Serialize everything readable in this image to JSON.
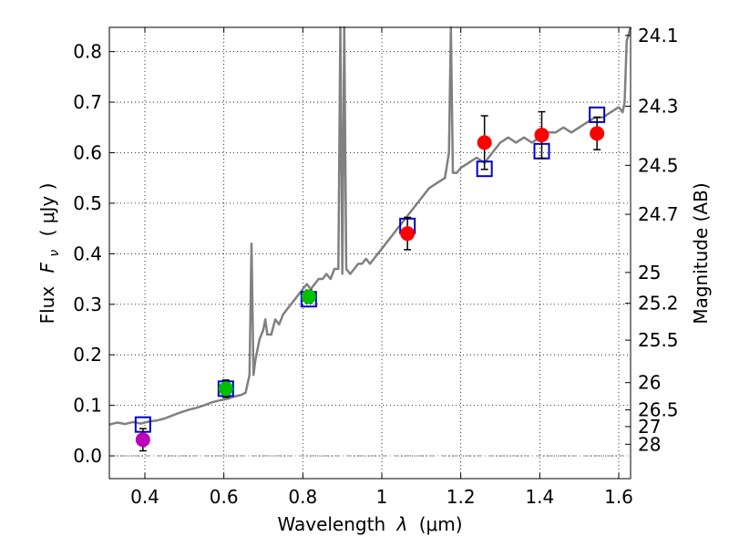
{
  "chart_data": {
    "type": "scatter",
    "xlabel_text": "Wavelength",
    "xlabel_symbol": "λ",
    "xlabel_unit": "(μm)",
    "ylabel_text": "Flux",
    "ylabel_symbol": "F",
    "ylabel_sub": "ν",
    "ylabel_unit": "( μJy )",
    "y2label": "Magnitude (AB)",
    "xlim": [
      0.31,
      1.63
    ],
    "ylim": [
      -0.045,
      0.848
    ],
    "x_ticks": [
      {
        "value": 0.4,
        "label": "0.4"
      },
      {
        "value": 0.6,
        "label": "0.6"
      },
      {
        "value": 0.8,
        "label": "0.8"
      },
      {
        "value": 1.0,
        "label": "1"
      },
      {
        "value": 1.2,
        "label": "1.2"
      },
      {
        "value": 1.4,
        "label": "1.4"
      },
      {
        "value": 1.6,
        "label": "1.6"
      }
    ],
    "y_ticks": [
      {
        "value": 0.0,
        "label": "0.0"
      },
      {
        "value": 0.1,
        "label": "0.1"
      },
      {
        "value": 0.2,
        "label": "0.2"
      },
      {
        "value": 0.3,
        "label": "0.3"
      },
      {
        "value": 0.4,
        "label": "0.4"
      },
      {
        "value": 0.5,
        "label": "0.5"
      },
      {
        "value": 0.6,
        "label": "0.6"
      },
      {
        "value": 0.7,
        "label": "0.7"
      },
      {
        "value": 0.8,
        "label": "0.8"
      }
    ],
    "mag_ticks": [
      {
        "flux": 0.832,
        "label": "24.1"
      },
      {
        "flux": 0.692,
        "label": "24.3"
      },
      {
        "flux": 0.575,
        "label": "24.5"
      },
      {
        "flux": 0.478,
        "label": "24.7"
      },
      {
        "flux": 0.363,
        "label": "25"
      },
      {
        "flux": 0.302,
        "label": "25.2"
      },
      {
        "flux": 0.229,
        "label": "25.5"
      },
      {
        "flux": 0.145,
        "label": "26"
      },
      {
        "flux": 0.091,
        "label": "26.5"
      },
      {
        "flux": 0.058,
        "label": "27"
      },
      {
        "flux": 0.023,
        "label": "28"
      }
    ],
    "grid": true,
    "colors": {
      "spectrum": "#808080",
      "model_box": "#0000cc",
      "uv_point": "#bf00bf",
      "optical_point": "#00bf00",
      "nir_point": "#ff0000",
      "errorbar": "#000000"
    },
    "series": [
      {
        "name": "Model spectrum",
        "kind": "line",
        "x": [
          0.31,
          0.33,
          0.35,
          0.37,
          0.39,
          0.41,
          0.43,
          0.45,
          0.47,
          0.49,
          0.51,
          0.53,
          0.55,
          0.57,
          0.59,
          0.61,
          0.63,
          0.645,
          0.655,
          0.665,
          0.67,
          0.675,
          0.68,
          0.69,
          0.7,
          0.705,
          0.71,
          0.72,
          0.73,
          0.74,
          0.75,
          0.76,
          0.77,
          0.78,
          0.79,
          0.8,
          0.81,
          0.82,
          0.83,
          0.84,
          0.85,
          0.86,
          0.87,
          0.88,
          0.89,
          0.895,
          0.9,
          0.905,
          0.91,
          0.92,
          0.93,
          0.94,
          0.95,
          0.96,
          0.97,
          0.98,
          0.99,
          1.0,
          1.02,
          1.04,
          1.06,
          1.08,
          1.1,
          1.12,
          1.14,
          1.16,
          1.17,
          1.175,
          1.18,
          1.19,
          1.2,
          1.22,
          1.24,
          1.26,
          1.28,
          1.3,
          1.32,
          1.34,
          1.36,
          1.38,
          1.4,
          1.42,
          1.44,
          1.46,
          1.48,
          1.5,
          1.52,
          1.54,
          1.56,
          1.58,
          1.6,
          1.61,
          1.615,
          1.62,
          1.63
        ],
        "y": [
          0.062,
          0.066,
          0.063,
          0.067,
          0.064,
          0.068,
          0.07,
          0.074,
          0.08,
          0.086,
          0.091,
          0.095,
          0.1,
          0.106,
          0.11,
          0.113,
          0.118,
          0.121,
          0.125,
          0.16,
          0.42,
          0.16,
          0.19,
          0.23,
          0.25,
          0.27,
          0.24,
          0.24,
          0.27,
          0.26,
          0.28,
          0.29,
          0.3,
          0.31,
          0.32,
          0.33,
          0.34,
          0.33,
          0.34,
          0.35,
          0.35,
          0.36,
          0.35,
          0.37,
          0.37,
          0.85,
          0.36,
          0.85,
          0.37,
          0.36,
          0.37,
          0.38,
          0.38,
          0.39,
          0.38,
          0.39,
          0.4,
          0.41,
          0.43,
          0.45,
          0.47,
          0.49,
          0.51,
          0.53,
          0.54,
          0.55,
          0.6,
          0.85,
          0.56,
          0.56,
          0.57,
          0.58,
          0.59,
          0.58,
          0.6,
          0.62,
          0.63,
          0.62,
          0.63,
          0.62,
          0.63,
          0.64,
          0.64,
          0.65,
          0.64,
          0.65,
          0.66,
          0.67,
          0.67,
          0.68,
          0.69,
          0.68,
          0.7,
          0.82,
          0.85
        ]
      },
      {
        "name": "Model photometry",
        "kind": "open-square",
        "x": [
          0.395,
          0.605,
          0.815,
          1.065,
          1.26,
          1.405,
          1.545
        ],
        "y": [
          0.062,
          0.133,
          0.31,
          0.455,
          0.568,
          0.603,
          0.675
        ]
      },
      {
        "name": "UV photometry",
        "kind": "point",
        "x": [
          0.395
        ],
        "y": [
          0.032
        ],
        "yerr": [
          0.022
        ]
      },
      {
        "name": "Optical photometry",
        "kind": "point",
        "x": [
          0.605,
          0.815
        ],
        "y": [
          0.133,
          0.315
        ],
        "yerr": [
          0.017,
          0.013
        ]
      },
      {
        "name": "NIR photometry",
        "kind": "point",
        "x": [
          1.065,
          1.26,
          1.405,
          1.545
        ],
        "y": [
          0.44,
          0.62,
          0.635,
          0.638
        ],
        "yerr": [
          0.032,
          0.053,
          0.046,
          0.032
        ]
      }
    ]
  }
}
